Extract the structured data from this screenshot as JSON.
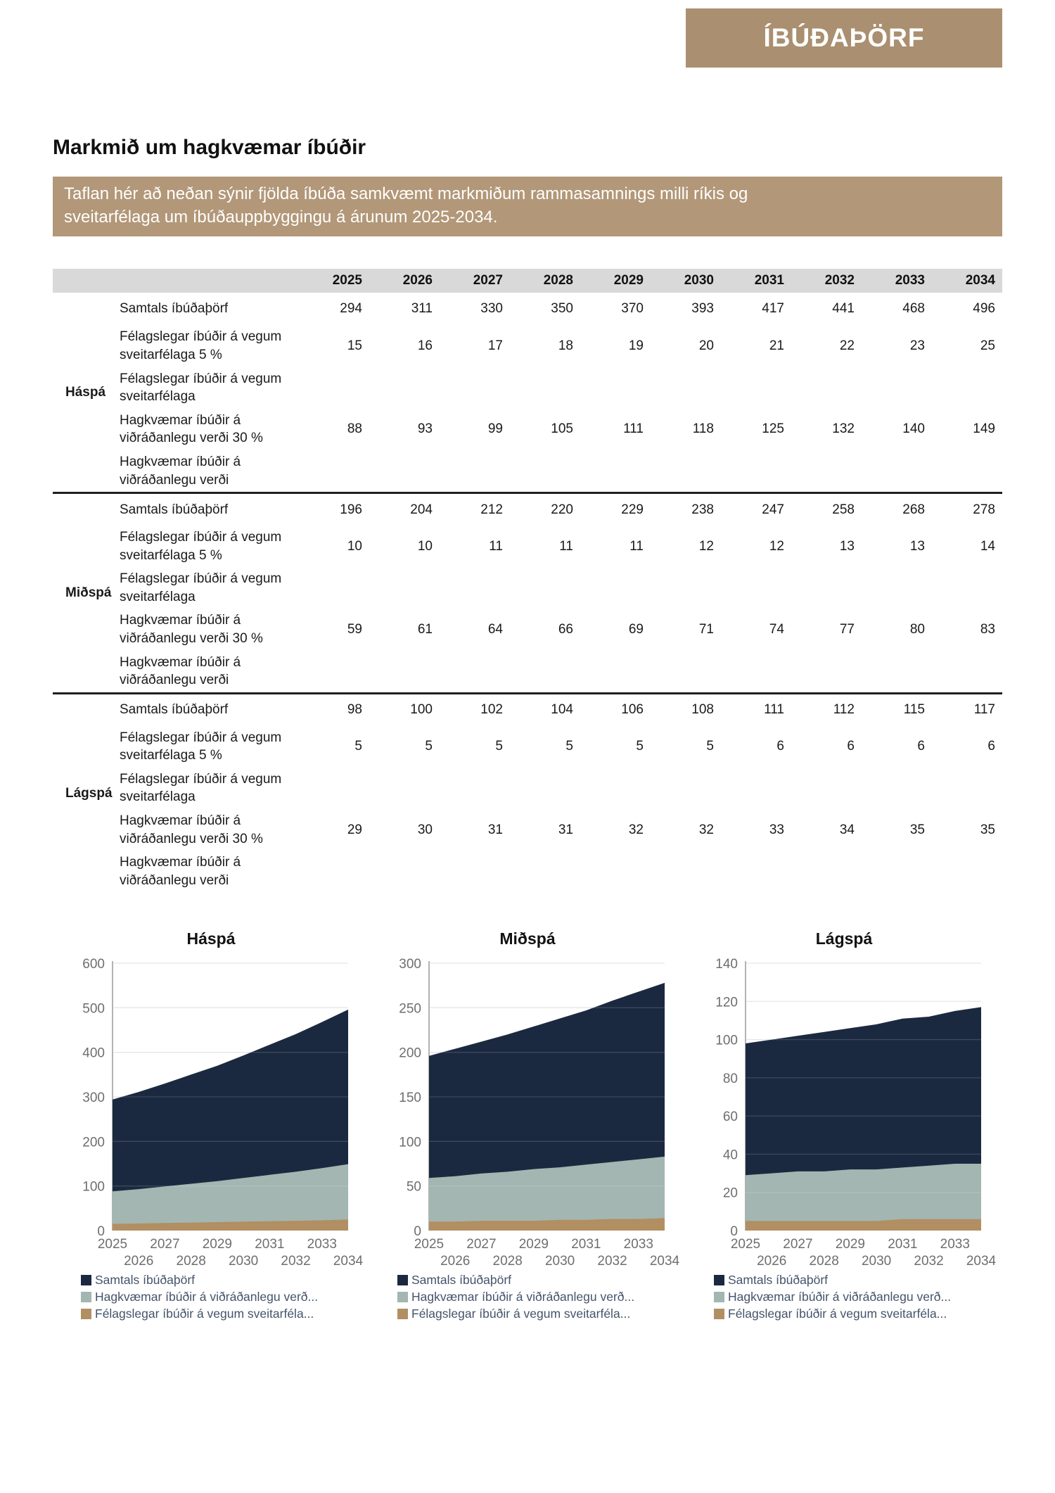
{
  "banner": {
    "title": "ÍBÚÐAÞÖRF"
  },
  "heading": {
    "title": "Markmið um hagkvæmar íbúðir"
  },
  "intro": {
    "text": "Taflan hér að neðan sýnir fjölda íbúða samkvæmt markmiðum rammasamnings milli ríkis og\nsveitarfélaga um íbúðauppbyggingu á árunum 2025-2034."
  },
  "colors": {
    "banner_bg": "#aa8f70",
    "info_bg": "#b29778",
    "table_header_bg": "#d9d9d9",
    "navy": "#1b2940",
    "sage": "#a3b6b1",
    "tan": "#b18f63",
    "legend_text": "#44546a",
    "axis_text": "#6e6e6e"
  },
  "table": {
    "years": [
      "2025",
      "2026",
      "2027",
      "2028",
      "2029",
      "2030",
      "2031",
      "2032",
      "2033",
      "2034"
    ],
    "sections": [
      {
        "name": "Háspá",
        "rows": [
          {
            "label": "Samtals íbúðaþörf",
            "values": [
              "294",
              "311",
              "330",
              "350",
              "370",
              "393",
              "417",
              "441",
              "468",
              "496"
            ]
          },
          {
            "label": "Félagslegar íbúðir á vegum\nsveitarfélaga 5 %",
            "values": [
              "15",
              "16",
              "17",
              "18",
              "19",
              "20",
              "21",
              "22",
              "23",
              "25"
            ]
          },
          {
            "label": "Félagslegar íbúðir á vegum\nsveitarfélaga",
            "values": [
              "",
              "",
              "",
              "",
              "",
              "",
              "",
              "",
              "",
              ""
            ]
          },
          {
            "label": "Hagkvæmar íbúðir á\nviðráðanlegu verði 30 %",
            "values": [
              "88",
              "93",
              "99",
              "105",
              "111",
              "118",
              "125",
              "132",
              "140",
              "149"
            ]
          },
          {
            "label": "Hagkvæmar íbúðir á\nviðráðanlegu verði",
            "values": [
              "",
              "",
              "",
              "",
              "",
              "",
              "",
              "",
              "",
              ""
            ]
          }
        ]
      },
      {
        "name": "Miðspá",
        "rows": [
          {
            "label": "Samtals íbúðaþörf",
            "values": [
              "196",
              "204",
              "212",
              "220",
              "229",
              "238",
              "247",
              "258",
              "268",
              "278"
            ]
          },
          {
            "label": "Félagslegar íbúðir á vegum\nsveitarfélaga 5 %",
            "values": [
              "10",
              "10",
              "11",
              "11",
              "11",
              "12",
              "12",
              "13",
              "13",
              "14"
            ]
          },
          {
            "label": "Félagslegar íbúðir á vegum\nsveitarfélaga",
            "values": [
              "",
              "",
              "",
              "",
              "",
              "",
              "",
              "",
              "",
              ""
            ]
          },
          {
            "label": "Hagkvæmar íbúðir á\nviðráðanlegu verði 30 %",
            "values": [
              "59",
              "61",
              "64",
              "66",
              "69",
              "71",
              "74",
              "77",
              "80",
              "83"
            ]
          },
          {
            "label": "Hagkvæmar íbúðir á\nviðráðanlegu verði",
            "values": [
              "",
              "",
              "",
              "",
              "",
              "",
              "",
              "",
              "",
              ""
            ]
          }
        ]
      },
      {
        "name": "Lágspá",
        "rows": [
          {
            "label": "Samtals íbúðaþörf",
            "values": [
              "98",
              "100",
              "102",
              "104",
              "106",
              "108",
              "111",
              "112",
              "115",
              "117"
            ]
          },
          {
            "label": "Félagslegar íbúðir á vegum\nsveitarfélaga 5 %",
            "values": [
              "5",
              "5",
              "5",
              "5",
              "5",
              "5",
              "6",
              "6",
              "6",
              "6"
            ]
          },
          {
            "label": "Félagslegar íbúðir á vegum\nsveitarfélaga",
            "values": [
              "",
              "",
              "",
              "",
              "",
              "",
              "",
              "",
              "",
              ""
            ]
          },
          {
            "label": "Hagkvæmar íbúðir á\nviðráðanlegu verði 30 %",
            "values": [
              "29",
              "30",
              "31",
              "31",
              "32",
              "32",
              "33",
              "34",
              "35",
              "35"
            ]
          },
          {
            "label": "Hagkvæmar íbúðir á\nviðráðanlegu verði",
            "values": [
              "",
              "",
              "",
              "",
              "",
              "",
              "",
              "",
              "",
              ""
            ]
          }
        ]
      }
    ]
  },
  "chart_data": [
    {
      "type": "area",
      "title": "Háspá",
      "x": [
        2025,
        2026,
        2027,
        2028,
        2029,
        2030,
        2031,
        2032,
        2033,
        2034
      ],
      "ylim": [
        0,
        600
      ],
      "yticks": [
        0,
        100,
        200,
        300,
        400,
        500,
        600
      ],
      "grid": true,
      "legend_position": "bottom",
      "series": [
        {
          "name": "Samtals íbúðaþörf",
          "color": "#1b2940",
          "values": [
            294,
            311,
            330,
            350,
            370,
            393,
            417,
            441,
            468,
            496
          ]
        },
        {
          "name": "Hagkvæmar íbúðir á viðráðanlegu verð...",
          "color": "#a3b6b1",
          "values": [
            88,
            93,
            99,
            105,
            111,
            118,
            125,
            132,
            140,
            149
          ]
        },
        {
          "name": "Félagslegar íbúðir á vegum sveitarféla...",
          "color": "#b18f63",
          "values": [
            15,
            16,
            17,
            18,
            19,
            20,
            21,
            22,
            23,
            25
          ]
        }
      ]
    },
    {
      "type": "area",
      "title": "Miðspá",
      "x": [
        2025,
        2026,
        2027,
        2028,
        2029,
        2030,
        2031,
        2032,
        2033,
        2034
      ],
      "ylim": [
        0,
        300
      ],
      "yticks": [
        0,
        50,
        100,
        150,
        200,
        250,
        300
      ],
      "grid": true,
      "legend_position": "bottom",
      "series": [
        {
          "name": "Samtals íbúðaþörf",
          "color": "#1b2940",
          "values": [
            196,
            204,
            212,
            220,
            229,
            238,
            247,
            258,
            268,
            278
          ]
        },
        {
          "name": "Hagkvæmar íbúðir á viðráðanlegu verð...",
          "color": "#a3b6b1",
          "values": [
            59,
            61,
            64,
            66,
            69,
            71,
            74,
            77,
            80,
            83
          ]
        },
        {
          "name": "Félagslegar íbúðir á vegum sveitarféla...",
          "color": "#b18f63",
          "values": [
            10,
            10,
            11,
            11,
            11,
            12,
            12,
            13,
            13,
            14
          ]
        }
      ]
    },
    {
      "type": "area",
      "title": "Lágspá",
      "x": [
        2025,
        2026,
        2027,
        2028,
        2029,
        2030,
        2031,
        2032,
        2033,
        2034
      ],
      "ylim": [
        0,
        140
      ],
      "yticks": [
        0,
        20,
        40,
        60,
        80,
        100,
        120,
        140
      ],
      "grid": true,
      "legend_position": "bottom",
      "series": [
        {
          "name": "Samtals íbúðaþörf",
          "color": "#1b2940",
          "values": [
            98,
            100,
            102,
            104,
            106,
            108,
            111,
            112,
            115,
            117
          ]
        },
        {
          "name": "Hagkvæmar íbúðir á viðráðanlegu verð...",
          "color": "#a3b6b1",
          "values": [
            29,
            30,
            31,
            31,
            32,
            32,
            33,
            34,
            35,
            35
          ]
        },
        {
          "name": "Félagslegar íbúðir á vegum sveitarféla...",
          "color": "#b18f63",
          "values": [
            5,
            5,
            5,
            5,
            5,
            5,
            6,
            6,
            6,
            6
          ]
        }
      ]
    }
  ]
}
